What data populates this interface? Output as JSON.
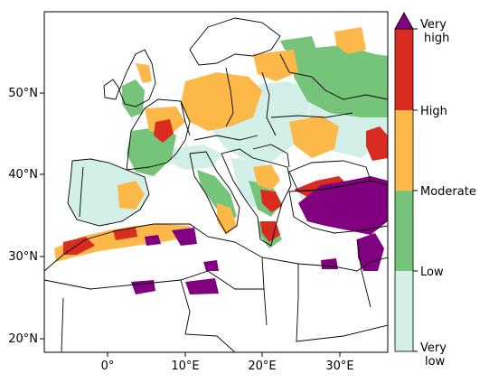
{
  "map": {
    "lat_labels": [
      "50°N",
      "40°N",
      "30°N",
      "20°N"
    ],
    "lon_labels": [
      "0°",
      "10°E",
      "20°E",
      "30°E"
    ]
  },
  "legend": {
    "classes": [
      {
        "key": "very_low",
        "color": "#d2efe8"
      },
      {
        "key": "low",
        "color": "#76c479"
      },
      {
        "key": "moderate",
        "color": "#fdb84a"
      },
      {
        "key": "high",
        "color": "#d82c20"
      },
      {
        "key": "very_high",
        "color": "#800080"
      }
    ],
    "labels": {
      "very_high_line1": "Very",
      "very_high_line2": "high",
      "high": "High",
      "moderate": "Moderate",
      "low": "Low",
      "very_low_line1": "Very",
      "very_low_line2": "low"
    }
  }
}
